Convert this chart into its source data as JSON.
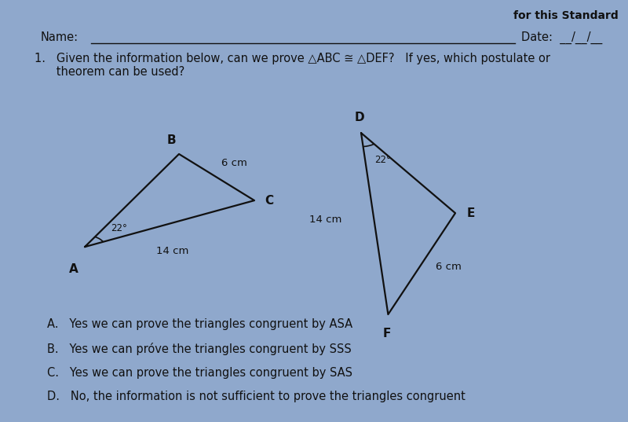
{
  "bg_color": "#8fa8cc",
  "title_text": "for this Standard",
  "name_label": "Name:",
  "date_label": "Date:  __/__/__",
  "question_line1": "1.   Given the information below, can we prove △ABC ≅ △DEF?   If yes, which postulate or",
  "question_line2": "      theorem can be used?",
  "triangle_ABC": {
    "A": [
      0.135,
      0.415
    ],
    "B": [
      0.285,
      0.635
    ],
    "C": [
      0.405,
      0.525
    ],
    "label_A": "A",
    "label_B": "B",
    "label_C": "C",
    "side_BC_label": "6 cm",
    "side_AC_label": "14 cm",
    "angle_A_label": "22°"
  },
  "triangle_DEF": {
    "D": [
      0.575,
      0.685
    ],
    "E": [
      0.725,
      0.495
    ],
    "F": [
      0.618,
      0.255
    ],
    "label_D": "D",
    "label_E": "E",
    "label_F": "F",
    "side_DF_label": "14 cm",
    "side_EF_label": "6 cm",
    "angle_D_label": "22°"
  },
  "choices": [
    "A.   Yes we can prove the triangles congruent by ASA",
    "B.   Yes we can próve the triangles congruent by SSS",
    "C.   Yes we can prove the triangles congruent by SAS",
    "D.   No, the information is not sufficient to prove the triangles congruent"
  ],
  "line_color": "#111111",
  "text_color": "#111111",
  "label_fontsize": 11,
  "question_fontsize": 10.5,
  "choice_fontsize": 10.5
}
